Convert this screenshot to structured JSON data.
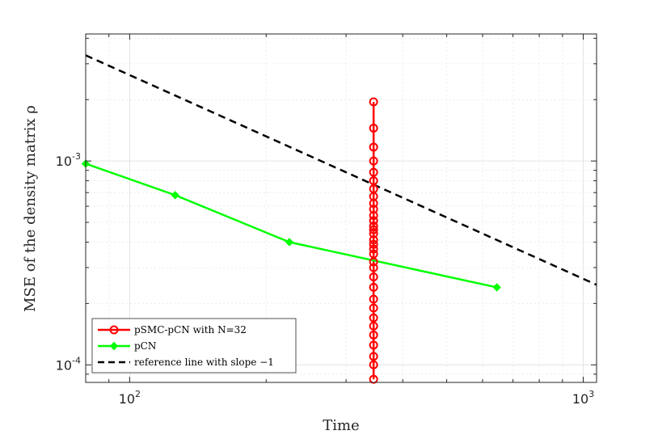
{
  "chart_data": {
    "type": "line",
    "xlabel": "Time",
    "ylabel": "MSE of the density matrix ρ",
    "x_scale": "log",
    "y_scale": "log",
    "xlim": [
      80,
      1070
    ],
    "ylim": [
      8.2e-05,
      0.0042
    ],
    "x_ticks": [
      {
        "value": 100,
        "base": "10",
        "exp": "2"
      },
      {
        "value": 1000,
        "base": "10",
        "exp": "3"
      }
    ],
    "y_ticks": [
      {
        "value": 0.0001,
        "base": "10",
        "exp": "-4"
      },
      {
        "value": 0.001,
        "base": "10",
        "exp": "-3"
      }
    ],
    "grid": true,
    "minor_grid": true,
    "legend_position": "bottom-left",
    "series": [
      {
        "name": "pSMC-pCN with N=32",
        "color": "#ff0000",
        "style": "solid",
        "marker": "circle",
        "x": [
          345,
          345,
          345,
          345,
          345,
          345,
          345,
          345,
          345,
          345,
          345,
          345,
          345,
          345,
          345,
          345,
          345,
          345,
          345,
          345,
          345,
          345,
          345,
          345,
          345,
          345,
          345,
          345,
          345,
          345,
          345,
          345
        ],
        "y": [
          0.00195,
          0.00145,
          0.00117,
          0.001,
          0.00088,
          0.0008,
          0.00073,
          0.00067,
          0.00062,
          0.00058,
          0.00054,
          0.00051,
          0.00048,
          0.00046,
          0.00044,
          0.00041,
          0.00039,
          0.00037,
          0.00035,
          0.00032,
          0.0003,
          0.00027,
          0.00024,
          0.00021,
          0.00019,
          0.00017,
          0.000155,
          0.00014,
          0.000125,
          0.00011,
          0.0001,
          8.5e-05
        ]
      },
      {
        "name": "pCN",
        "color": "#00ff00",
        "style": "solid",
        "marker": "diamond",
        "x": [
          80,
          126,
          225,
          645
        ],
        "y": [
          0.00097,
          0.00068,
          0.0004,
          0.00024
        ]
      },
      {
        "name": "reference line with slope −1",
        "color": "#000000",
        "style": "dashed",
        "marker": "none",
        "x": [
          80,
          1070
        ],
        "y": [
          0.0033,
          0.000247
        ]
      }
    ]
  }
}
